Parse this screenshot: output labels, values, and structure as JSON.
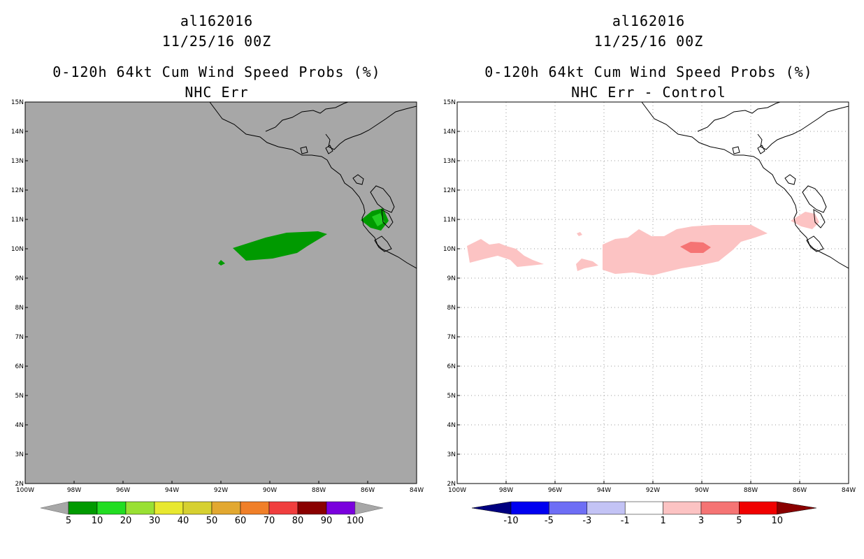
{
  "colors": {
    "map_bg_left": "#a7a7a7",
    "prob_green_dark": "#009a00",
    "prob_green_light": "#22cc22",
    "diff_pink_light": "#fcc3c3",
    "diff_pink_mid": "#f57474",
    "grid": "#999999"
  },
  "left_panel": {
    "storm_id": "al162016",
    "datetime": "11/25/16 00Z",
    "product": "0-120h 64kt Cum Wind Speed Probs (%)",
    "subtitle": "NHC Err",
    "x_ticks": [
      "100W",
      "98W",
      "96W",
      "94W",
      "92W",
      "90W",
      "88W",
      "86W",
      "84W"
    ],
    "y_ticks": [
      "2N",
      "3N",
      "4N",
      "5N",
      "6N",
      "7N",
      "8N",
      "9N",
      "10N",
      "11N",
      "12N",
      "13N",
      "14N",
      "15N"
    ],
    "colorbar": {
      "labels": [
        "5",
        "10",
        "20",
        "30",
        "40",
        "50",
        "60",
        "70",
        "80",
        "90",
        "100"
      ],
      "colors": [
        "#009a00",
        "#22dd22",
        "#99e033",
        "#e8e82f",
        "#d6d030",
        "#e2a830",
        "#f07f28",
        "#f03e3e",
        "#8a0000",
        "#7a00dd"
      ],
      "end_color": "#a7a7a7"
    }
  },
  "right_panel": {
    "storm_id": "al162016",
    "datetime": "11/25/16 00Z",
    "product": "0-120h 64kt Cum Wind Speed Probs (%)",
    "subtitle": "NHC Err - Control",
    "x_ticks": [
      "100W",
      "98W",
      "96W",
      "94W",
      "92W",
      "90W",
      "88W",
      "86W",
      "84W"
    ],
    "y_ticks": [
      "2N",
      "3N",
      "4N",
      "5N",
      "6N",
      "7N",
      "8N",
      "9N",
      "10N",
      "11N",
      "12N",
      "13N",
      "14N",
      "15N"
    ],
    "colorbar": {
      "labels": [
        "-10",
        "-5",
        "-3",
        "-1",
        "1",
        "3",
        "5",
        "10"
      ],
      "colors": [
        "#0000b4",
        "#0000f0",
        "#6e6ef5",
        "#c3c3f5",
        "#ffffff",
        "#fcc3c3",
        "#f57474",
        "#f00000",
        "#8a0000"
      ],
      "left_end_color": "#000080",
      "right_end_color": "#8a0000"
    }
  }
}
